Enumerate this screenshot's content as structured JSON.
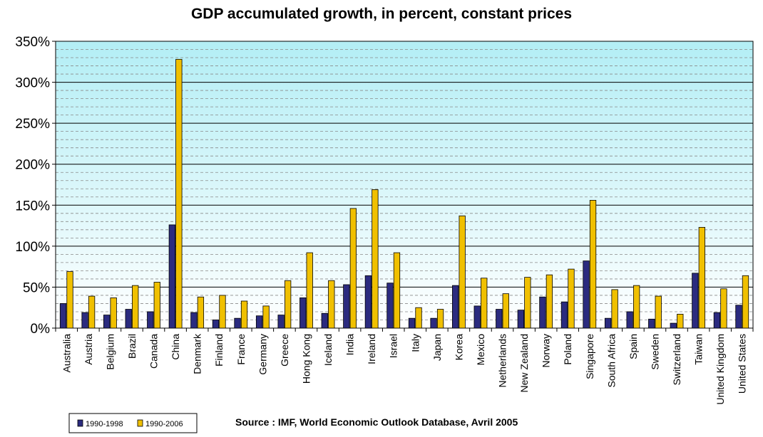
{
  "chart_data": {
    "type": "bar",
    "title": "GDP accumulated growth, in percent, constant prices",
    "source": "Source : IMF, World Economic Outlook Database, Avril 2005",
    "xlabel": "",
    "ylabel": "",
    "ylim": [
      0,
      350
    ],
    "yticks": [
      0,
      50,
      100,
      150,
      200,
      250,
      300,
      350
    ],
    "ytick_labels": [
      "0%",
      "50%",
      "100%",
      "150%",
      "200%",
      "250%",
      "300%",
      "350%"
    ],
    "grid": true,
    "legend_position": "bottom-left",
    "categories": [
      "Australia",
      "Austria",
      "Belgium",
      "Brazil",
      "Canada",
      "China",
      "Denmark",
      "Finland",
      "France",
      "Germany",
      "Greece",
      "Hong Kong",
      "Iceland",
      "India",
      "Ireland",
      "Israel",
      "Italy",
      "Japan",
      "Korea",
      "Mexico",
      "Netherlands",
      "New Zealand",
      "Norway",
      "Poland",
      "Singapore",
      "South Africa",
      "Spain",
      "Sweden",
      "Switzerland",
      "Taiwan",
      "United Kingdom",
      "United States"
    ],
    "series": [
      {
        "name": "1990-1998",
        "color": "#2b2b7f",
        "values": [
          30,
          19,
          16,
          23,
          20,
          126,
          19,
          10,
          12,
          15,
          16,
          37,
          18,
          53,
          64,
          55,
          12,
          12,
          52,
          27,
          23,
          22,
          38,
          32,
          82,
          12,
          20,
          11,
          6,
          67,
          19,
          28
        ]
      },
      {
        "name": "1990-2006",
        "color": "#f0c000",
        "values": [
          69,
          39,
          37,
          52,
          56,
          328,
          38,
          40,
          33,
          27,
          58,
          92,
          58,
          146,
          169,
          92,
          25,
          23,
          137,
          61,
          42,
          62,
          65,
          72,
          156,
          47,
          52,
          39,
          17,
          123,
          48,
          64
        ]
      }
    ]
  }
}
